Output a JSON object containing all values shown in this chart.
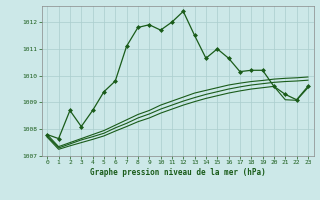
{
  "title": "Graphe pression niveau de la mer (hPa)",
  "bg_color": "#cce8e8",
  "grid_color": "#aacece",
  "line_color": "#1a5c1a",
  "xlim": [
    -0.5,
    23.5
  ],
  "ylim": [
    1007,
    1012.6
  ],
  "yticks": [
    1007,
    1008,
    1009,
    1010,
    1011,
    1012
  ],
  "xticks": [
    0,
    1,
    2,
    3,
    4,
    5,
    6,
    7,
    8,
    9,
    10,
    11,
    12,
    13,
    14,
    15,
    16,
    17,
    18,
    19,
    20,
    21,
    22,
    23
  ],
  "series1_x": [
    0,
    1,
    2,
    3,
    4,
    5,
    6,
    7,
    8,
    9,
    10,
    11,
    12,
    13,
    14,
    15,
    16,
    17,
    18,
    19,
    20,
    21,
    22,
    23
  ],
  "series1_y": [
    1007.8,
    1007.65,
    1008.7,
    1008.1,
    1008.7,
    1009.4,
    1009.8,
    1011.1,
    1011.8,
    1011.9,
    1011.7,
    1012.0,
    1012.4,
    1011.5,
    1010.65,
    1011.0,
    1010.65,
    1010.15,
    1010.2,
    1010.2,
    1009.6,
    1009.3,
    1009.1,
    1009.6
  ],
  "series2_x": [
    0,
    1,
    2,
    3,
    4,
    5,
    6,
    7,
    8,
    9,
    10,
    11,
    12,
    13,
    14,
    15,
    16,
    17,
    18,
    19,
    20,
    21,
    22,
    23
  ],
  "series2_y": [
    1007.8,
    1007.35,
    1007.5,
    1007.65,
    1007.8,
    1007.95,
    1008.15,
    1008.35,
    1008.55,
    1008.7,
    1008.9,
    1009.05,
    1009.2,
    1009.35,
    1009.45,
    1009.55,
    1009.65,
    1009.72,
    1009.78,
    1009.82,
    1009.87,
    1009.9,
    1009.92,
    1009.95
  ],
  "series3_x": [
    0,
    1,
    2,
    3,
    4,
    5,
    6,
    7,
    8,
    9,
    10,
    11,
    12,
    13,
    14,
    15,
    16,
    17,
    18,
    19,
    20,
    21,
    22,
    23
  ],
  "series3_y": [
    1007.75,
    1007.3,
    1007.45,
    1007.6,
    1007.72,
    1007.85,
    1008.05,
    1008.22,
    1008.42,
    1008.57,
    1008.75,
    1008.9,
    1009.05,
    1009.18,
    1009.3,
    1009.4,
    1009.5,
    1009.58,
    1009.65,
    1009.7,
    1009.75,
    1009.78,
    1009.8,
    1009.83
  ],
  "series4_x": [
    0,
    1,
    2,
    3,
    4,
    5,
    6,
    7,
    8,
    9,
    10,
    11,
    12,
    13,
    14,
    15,
    16,
    17,
    18,
    19,
    20,
    21,
    22,
    23
  ],
  "series4_y": [
    1007.7,
    1007.25,
    1007.38,
    1007.5,
    1007.62,
    1007.75,
    1007.93,
    1008.1,
    1008.28,
    1008.42,
    1008.6,
    1008.75,
    1008.9,
    1009.03,
    1009.15,
    1009.25,
    1009.35,
    1009.43,
    1009.5,
    1009.55,
    1009.6,
    1009.1,
    1009.08,
    1009.55
  ]
}
